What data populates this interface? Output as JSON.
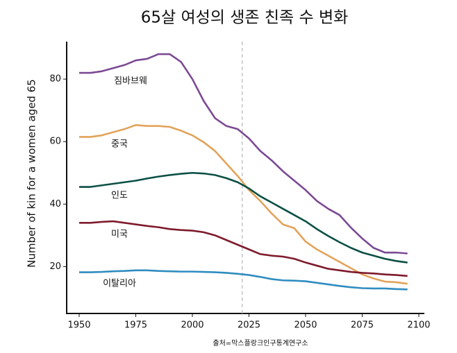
{
  "chart_data": {
    "type": "line",
    "title": "65살 여성의 생존 친족 수 변화",
    "y_label": "Number of kin for a women aged 65",
    "source": "출처=막스플랑크인구통계연구소",
    "x": [
      1950,
      1955,
      1960,
      1965,
      1970,
      1975,
      1980,
      1985,
      1990,
      1995,
      2000,
      2005,
      2010,
      2015,
      2020,
      2025,
      2030,
      2035,
      2040,
      2045,
      2050,
      2055,
      2060,
      2065,
      2070,
      2075,
      2080,
      2085,
      2090,
      2095
    ],
    "series": [
      {
        "name": "짐바브웨",
        "color": "#7b4a93",
        "values": [
          82,
          82,
          82.5,
          83.5,
          84.5,
          86,
          86.5,
          88,
          88,
          85.5,
          80,
          73,
          67.5,
          65,
          64,
          61,
          57,
          54,
          50.5,
          47.5,
          44.5,
          41,
          38.5,
          36.5,
          32.5,
          29,
          26,
          24.5,
          24.5,
          24.2
        ]
      },
      {
        "name": "중국",
        "color": "#e3a35a",
        "values": [
          61.5,
          61.5,
          62,
          63,
          64,
          65.3,
          65,
          65,
          64.7,
          63.5,
          62,
          59.8,
          57,
          53,
          49,
          44.5,
          41,
          37,
          33.5,
          32.3,
          28,
          25.5,
          23.5,
          21.5,
          19.5,
          17.5,
          16.2,
          15.2,
          15,
          14.5
        ]
      },
      {
        "name": "인도",
        "color": "#0b4f45",
        "values": [
          45.5,
          45.5,
          46,
          46.5,
          47,
          47.5,
          48.2,
          48.8,
          49.3,
          49.7,
          50,
          49.8,
          49.3,
          48.3,
          47,
          45,
          42.5,
          40.5,
          38.5,
          36.5,
          34.5,
          32,
          29.8,
          27.8,
          26,
          24.5,
          23.5,
          22.5,
          21.8,
          21.3
        ]
      },
      {
        "name": "미국",
        "color": "#7e1a2c",
        "values": [
          34,
          34,
          34.3,
          34.5,
          34,
          33.5,
          33,
          32.6,
          32,
          31.7,
          31.5,
          31,
          30,
          28.5,
          27,
          25.5,
          24,
          23.5,
          23.2,
          22.5,
          21.3,
          20.3,
          19.3,
          18.8,
          18.3,
          18,
          17.8,
          17.5,
          17.3,
          17
        ]
      },
      {
        "name": "이탈리아",
        "color": "#2f8cc0",
        "values": [
          18.2,
          18.2,
          18.3,
          18.5,
          18.6,
          18.8,
          18.8,
          18.6,
          18.5,
          18.4,
          18.4,
          18.3,
          18.2,
          18,
          17.7,
          17.3,
          16.7,
          16,
          15.6,
          15.5,
          15.3,
          14.8,
          14.3,
          13.8,
          13.4,
          13.1,
          13,
          13,
          12.8,
          12.7
        ]
      }
    ],
    "reference_x": 2022,
    "xlim": [
      1945,
      2100
    ],
    "ylim": [
      5,
      92
    ],
    "xticks": [
      1950,
      1975,
      2000,
      2025,
      2050,
      2075,
      2100
    ],
    "yticks": [
      20,
      40,
      60,
      80
    ],
    "grid": false
  }
}
